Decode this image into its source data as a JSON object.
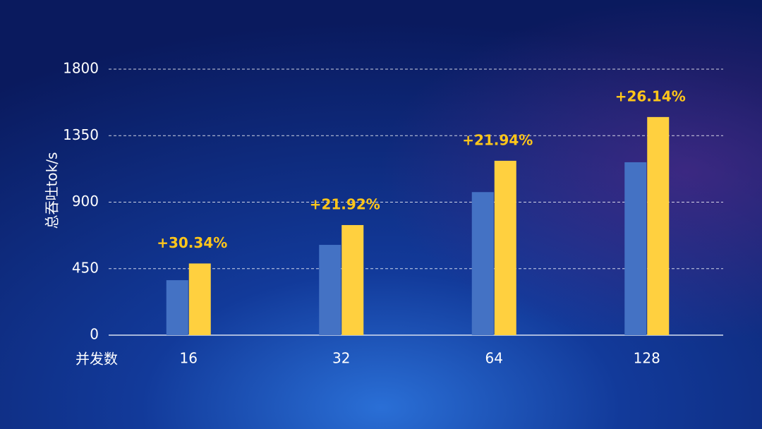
{
  "chart_data": {
    "type": "bar",
    "x_label": "并发数",
    "y_label": "总吞吐tok/s",
    "categories": [
      "16",
      "32",
      "64",
      "128"
    ],
    "series": [
      {
        "color": "#4472c4",
        "values": [
          372,
          611,
          968,
          1170
        ]
      },
      {
        "color": "#ffd03f",
        "values": [
          485,
          745,
          1180,
          1476
        ]
      }
    ],
    "annotations": [
      "+30.34%",
      "+21.92%",
      "+21.94%",
      "+26.14%"
    ],
    "annotation_color": "#ffc61a",
    "ylim": [
      0,
      1800
    ],
    "yticks": [
      0,
      450,
      900,
      1350,
      1800
    ],
    "grid": true
  }
}
